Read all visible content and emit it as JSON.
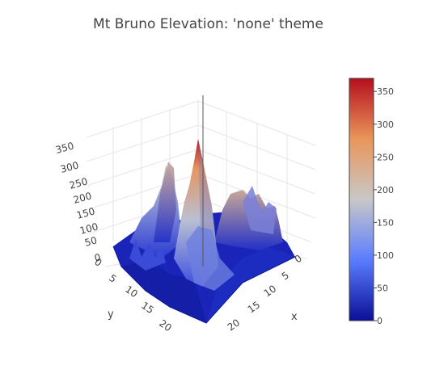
{
  "chart_data": {
    "type": "surface",
    "title": "Mt Bruno Elevation: 'none' theme",
    "theme": "none",
    "colorscale": [
      "#0a0f96",
      "#5a7dff",
      "#c8c8c8",
      "#e9965a",
      "#b40f1e"
    ],
    "x": {
      "label": "x",
      "ticks": [
        "0",
        "5",
        "10",
        "15",
        "20"
      ]
    },
    "y": {
      "label": "y",
      "ticks": [
        "0",
        "5",
        "10",
        "15",
        "20"
      ]
    },
    "z": {
      "ticks": [
        "0",
        "50",
        "100",
        "150",
        "200",
        "250",
        "300",
        "350"
      ]
    },
    "colorbar": {
      "range": [
        0,
        370
      ],
      "ticks": [
        "0",
        "50",
        "100",
        "150",
        "200",
        "250",
        "300",
        "350"
      ]
    },
    "surface_peaks": [
      {
        "x": 12,
        "y": 7,
        "z": 360
      },
      {
        "x": 11,
        "y": 9,
        "z": 260
      },
      {
        "x": 14,
        "y": 3,
        "z": 200
      },
      {
        "x": 4,
        "y": 9,
        "z": 180
      },
      {
        "x": 20,
        "y": 3,
        "z": 170
      }
    ]
  }
}
